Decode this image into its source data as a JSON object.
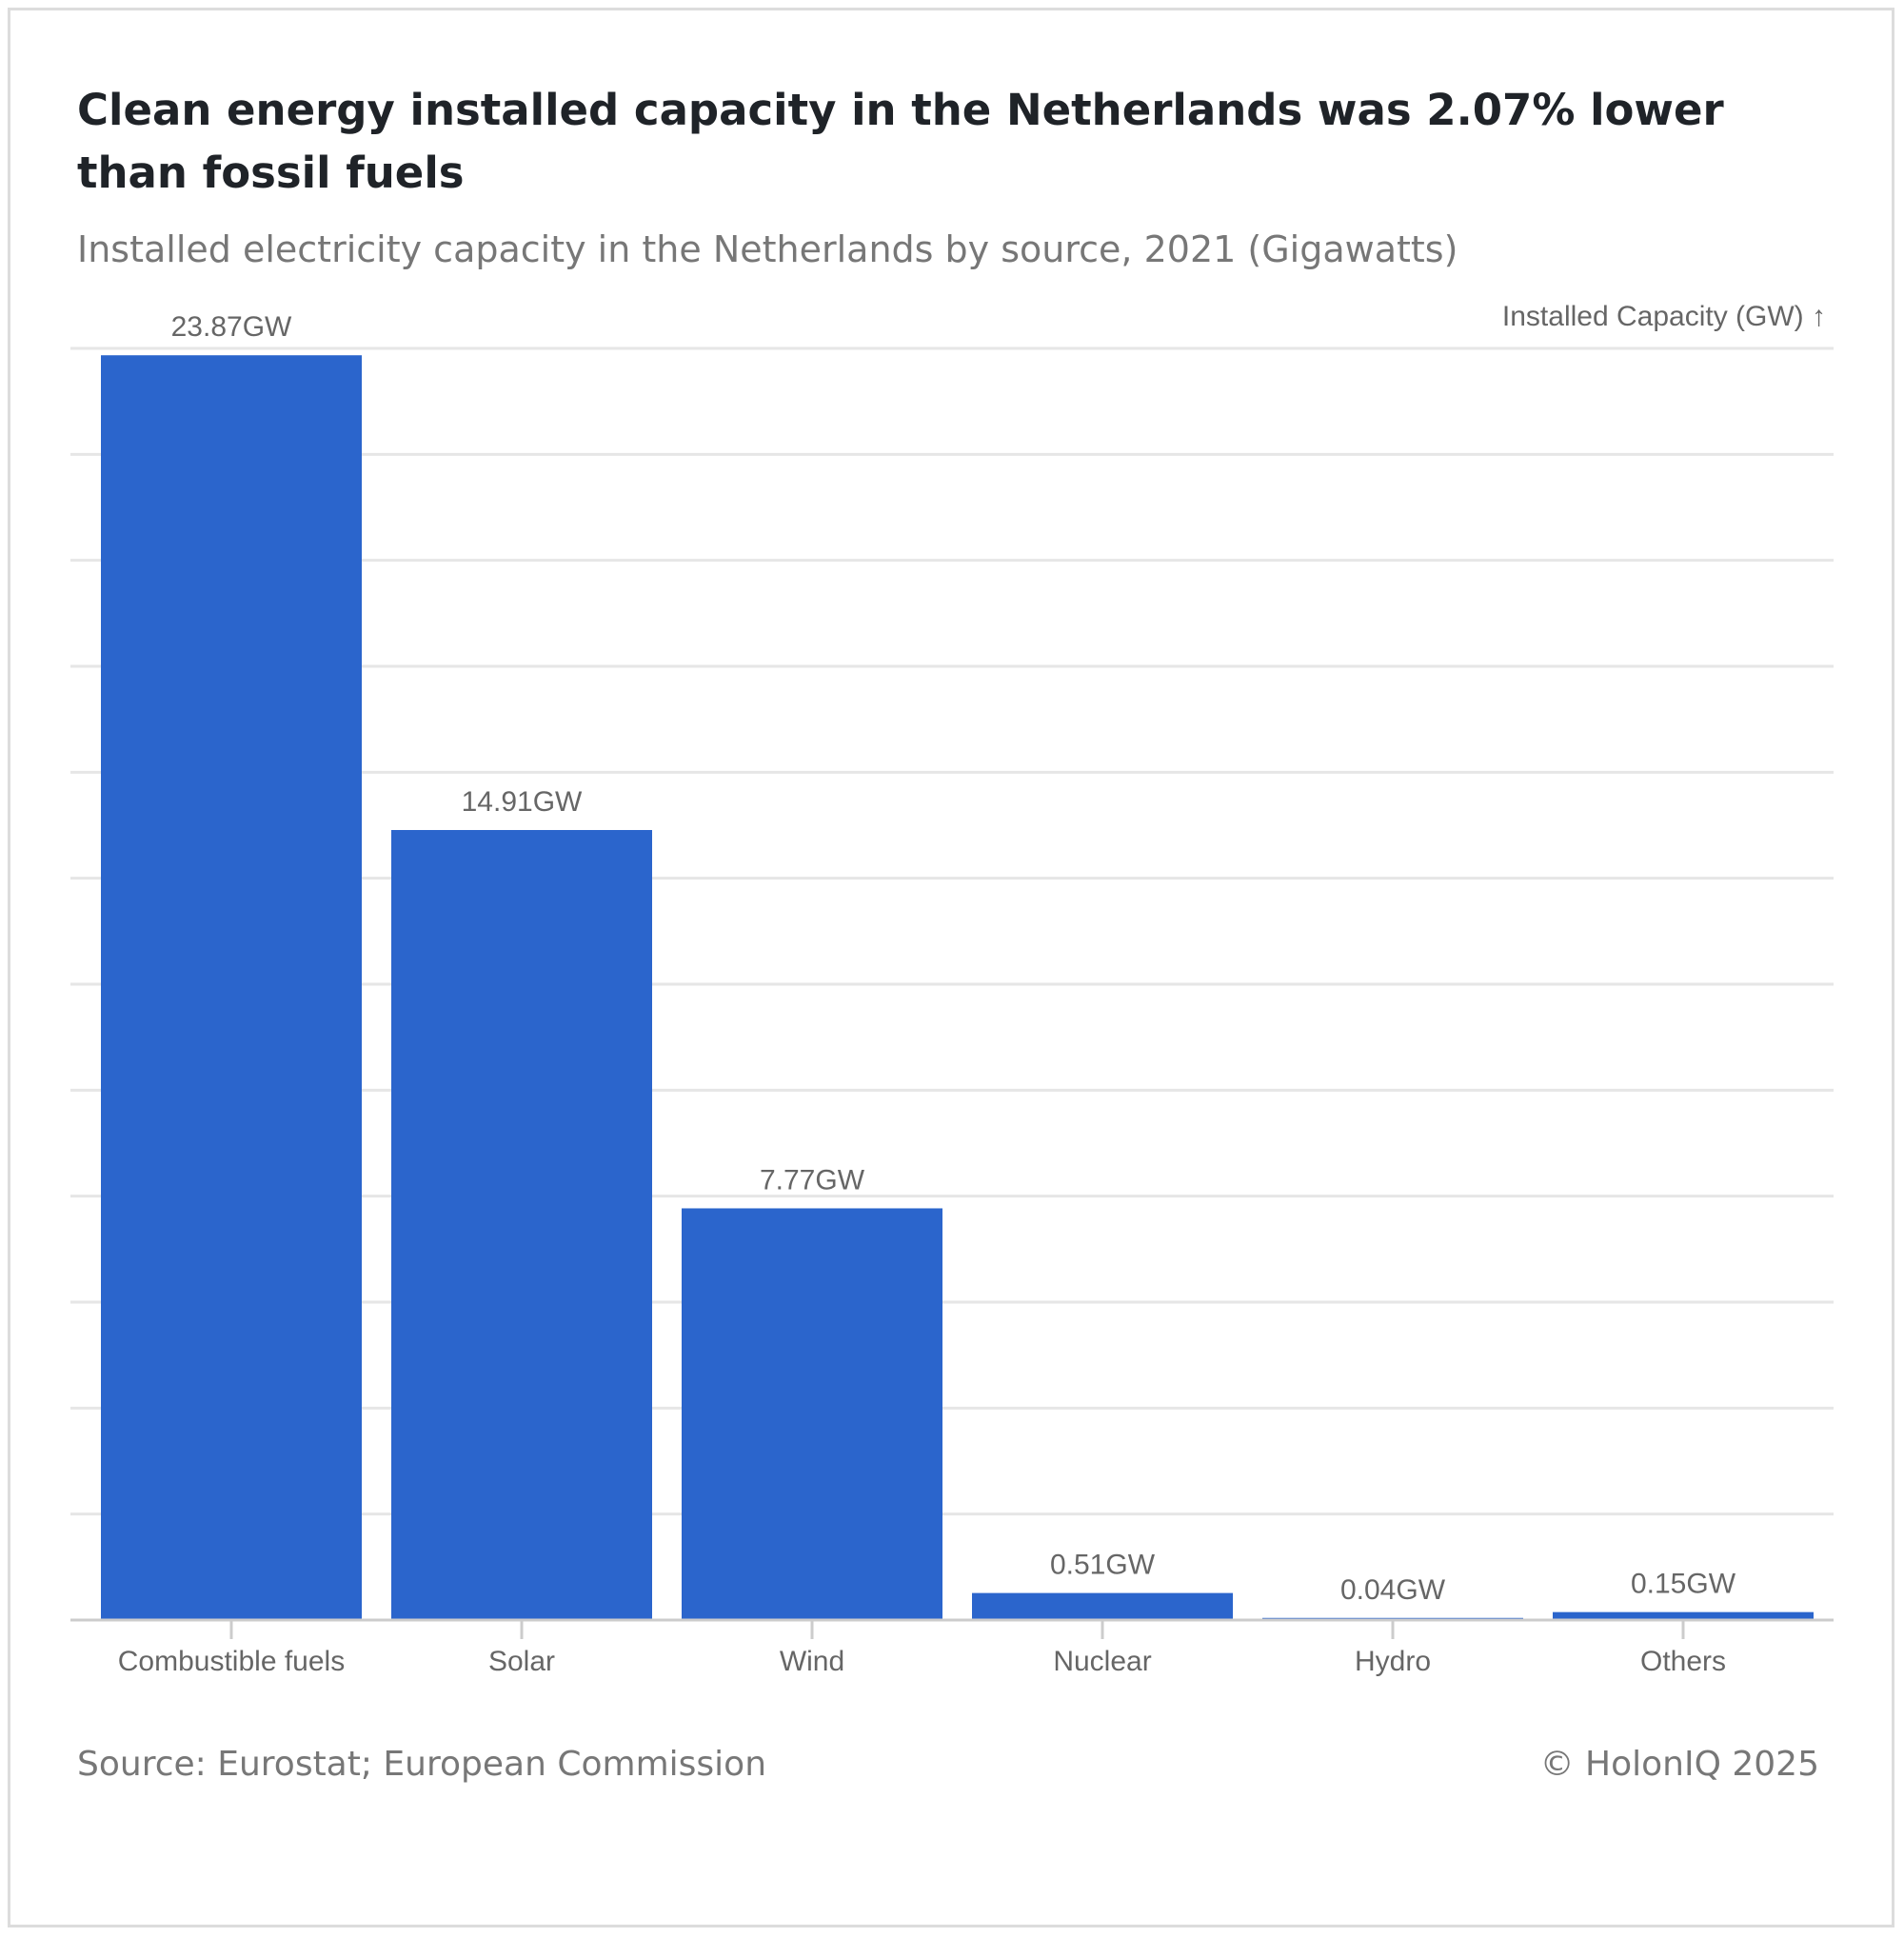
{
  "title": "Clean energy installed capacity in the Netherlands was 2.07% lower than fossil fuels",
  "subtitle": "Installed electricity capacity in the Netherlands by source, 2021 (Gigawatts)",
  "source": "Source: Eurostat; European Commission",
  "copyright": "© HolonIQ 2025",
  "colors": {
    "bar": "#2b65cc",
    "grid": "#e6e6e6",
    "axis": "#cccccc"
  },
  "chart_data": {
    "type": "bar",
    "ylabel": "Installed Capacity (GW) ↑",
    "categories": [
      "Combustible fuels",
      "Solar",
      "Wind",
      "Nuclear",
      "Hydro",
      "Others"
    ],
    "values": [
      23.87,
      14.91,
      7.77,
      0.51,
      0.04,
      0.15
    ],
    "data_labels": [
      "23.87GW",
      "14.91GW",
      "7.77GW",
      "0.51GW",
      "0.04GW",
      "0.15GW"
    ],
    "ylim": [
      0,
      24
    ],
    "grid": true
  }
}
